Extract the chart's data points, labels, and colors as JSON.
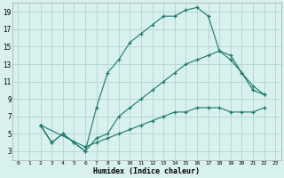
{
  "xlabel": "Humidex (Indice chaleur)",
  "bg_color": "#d8f0ee",
  "grid_color": "#b8d8d4",
  "line_color": "#1a7a6e",
  "xlim": [
    -0.5,
    23.5
  ],
  "ylim": [
    2,
    20
  ],
  "xticks": [
    0,
    1,
    2,
    3,
    4,
    5,
    6,
    7,
    8,
    9,
    10,
    11,
    12,
    13,
    14,
    15,
    16,
    17,
    18,
    19,
    20,
    21,
    22,
    23
  ],
  "yticks": [
    3,
    5,
    7,
    9,
    11,
    13,
    15,
    17,
    19
  ],
  "line1_x": [
    2,
    3,
    4,
    5,
    6,
    7,
    8,
    9,
    10,
    11,
    12,
    13,
    14,
    15,
    16,
    17,
    18,
    19,
    20,
    21,
    22
  ],
  "line1_y": [
    6,
    4,
    5,
    4,
    3,
    8,
    12,
    13.5,
    15.5,
    16.5,
    17.5,
    18.5,
    18.5,
    19.2,
    19.5,
    18.5,
    14.5,
    14,
    12,
    10.5,
    9.5
  ],
  "line2_x": [
    2,
    3,
    4,
    5,
    6,
    7,
    8,
    9,
    10,
    11,
    12,
    13,
    14,
    15,
    16,
    17,
    18,
    19,
    20,
    21,
    22
  ],
  "line2_y": [
    6,
    4,
    5,
    4,
    3,
    4.5,
    5,
    7,
    8,
    9,
    10,
    11,
    12,
    13,
    13.5,
    14,
    14.5,
    13.5,
    12,
    10,
    9.5
  ],
  "line3_x": [
    2,
    6,
    7,
    8,
    9,
    10,
    11,
    12,
    13,
    14,
    15,
    16,
    17,
    18,
    19,
    20,
    21,
    22
  ],
  "line3_y": [
    6,
    3.5,
    4,
    4.5,
    5,
    5.5,
    6,
    6.5,
    7,
    7.5,
    7.5,
    8,
    8,
    8,
    7.5,
    7.5,
    7.5,
    8
  ]
}
